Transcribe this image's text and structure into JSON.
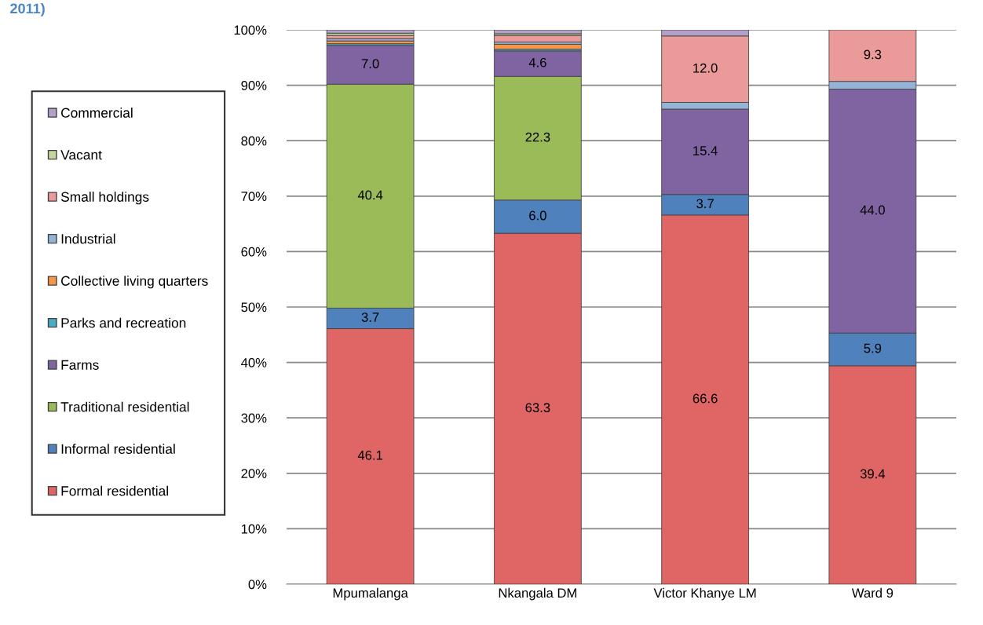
{
  "chart_data": {
    "type": "bar",
    "stacked": true,
    "title": "2011)",
    "categories": [
      "Mpumalanga",
      "Nkangala DM",
      "Victor Khanye LM",
      "Ward 9"
    ],
    "series": [
      {
        "name": "Formal residential",
        "color": "#e06666",
        "values": [
          46.1,
          63.3,
          66.6,
          39.4
        ],
        "value_labels": [
          "46.1",
          "63.3",
          "66.6",
          "39.4"
        ]
      },
      {
        "name": "Informal residential",
        "color": "#4f81bd",
        "values": [
          3.7,
          6.0,
          3.7,
          5.9
        ],
        "value_labels": [
          "3.7",
          "6.0",
          "3.7",
          "5.9"
        ]
      },
      {
        "name": "Traditional residential",
        "color": "#9bbb59",
        "values": [
          40.4,
          22.3,
          0,
          0
        ],
        "value_labels": [
          "40.4",
          "22.3",
          null,
          null
        ]
      },
      {
        "name": "Farms",
        "color": "#8064a2",
        "values": [
          7.0,
          4.6,
          15.4,
          44.0
        ],
        "value_labels": [
          "7.0",
          "4.6",
          "15.4",
          "44.0"
        ]
      },
      {
        "name": "Parks and recreation",
        "color": "#4bacc6",
        "values": [
          0.3,
          0.3,
          0,
          0
        ]
      },
      {
        "name": "Collective living quarters",
        "color": "#f79646",
        "values": [
          0.5,
          0.9,
          0,
          0
        ]
      },
      {
        "name": "Industrial",
        "color": "#95b3d7",
        "values": [
          0.4,
          0.4,
          1.2,
          1.4
        ]
      },
      {
        "name": "Small holdings",
        "color": "#eb9a9a",
        "values": [
          0.6,
          1.2,
          12.0,
          9.3
        ],
        "value_labels": [
          null,
          null,
          "12.0",
          "9.3"
        ]
      },
      {
        "name": "Vacant",
        "color": "#c3d69b",
        "values": [
          0.4,
          0.3,
          0,
          0
        ]
      },
      {
        "name": "Commercial",
        "color": "#b3a2c7",
        "values": [
          0.6,
          0.7,
          1.1,
          0
        ]
      }
    ],
    "ylim": [
      0,
      100
    ],
    "yticks": [
      {
        "value": 0,
        "label": "0%"
      },
      {
        "value": 10,
        "label": "10%"
      },
      {
        "value": 20,
        "label": "20%"
      },
      {
        "value": 30,
        "label": "30%"
      },
      {
        "value": 40,
        "label": "40%"
      },
      {
        "value": 50,
        "label": "50%"
      },
      {
        "value": 60,
        "label": "60%"
      },
      {
        "value": 70,
        "label": "70%"
      },
      {
        "value": 80,
        "label": "80%"
      },
      {
        "value": 90,
        "label": "90%"
      },
      {
        "value": 100,
        "label": "100%"
      }
    ],
    "grid": "y",
    "legend": "left"
  }
}
